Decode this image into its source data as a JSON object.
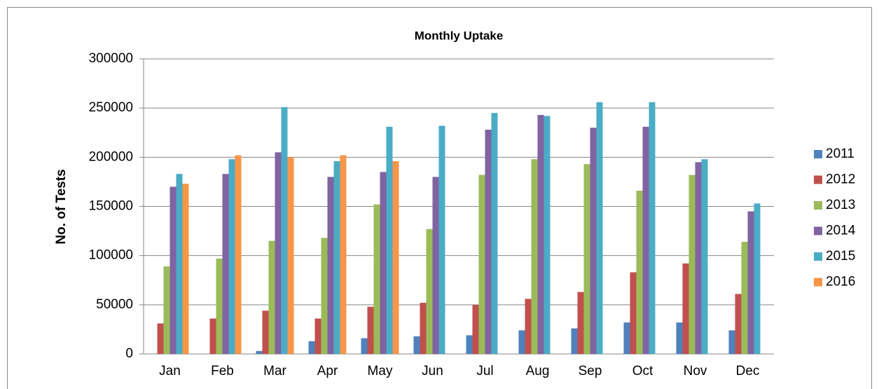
{
  "chart_data": {
    "type": "bar",
    "title": "Monthly Uptake",
    "y_label": "No. of Tests",
    "categories": [
      "Jan",
      "Feb",
      "Mar",
      "Apr",
      "May",
      "Jun",
      "Jul",
      "Aug",
      "Sep",
      "Oct",
      "Nov",
      "Dec"
    ],
    "series": [
      {
        "name": "2011",
        "color": "#4f81bd",
        "values": [
          null,
          null,
          3000,
          13000,
          16000,
          18000,
          19000,
          24000,
          26000,
          32000,
          32000,
          24000
        ]
      },
      {
        "name": "2012",
        "color": "#c0504d",
        "values": [
          31000,
          36000,
          44000,
          36000,
          48000,
          52000,
          50000,
          56000,
          63000,
          83000,
          92000,
          61000
        ]
      },
      {
        "name": "2013",
        "color": "#9bbb59",
        "values": [
          89000,
          97000,
          115000,
          118000,
          152000,
          127000,
          182000,
          198000,
          193000,
          166000,
          182000,
          114000
        ]
      },
      {
        "name": "2014",
        "color": "#8064a2",
        "values": [
          170000,
          183000,
          205000,
          180000,
          185000,
          180000,
          228000,
          243000,
          230000,
          231000,
          195000,
          145000
        ]
      },
      {
        "name": "2015",
        "color": "#4bacc6",
        "values": [
          183000,
          198000,
          251000,
          196000,
          231000,
          232000,
          245000,
          242000,
          256000,
          256000,
          198000,
          153000
        ]
      },
      {
        "name": "2016",
        "color": "#f79646",
        "values": [
          173000,
          202000,
          200000,
          202000,
          196000,
          null,
          null,
          null,
          null,
          null,
          null,
          null
        ]
      }
    ],
    "ylim": [
      0,
      300000
    ],
    "yticks": [
      0,
      50000,
      100000,
      150000,
      200000,
      250000,
      300000
    ],
    "grid": true,
    "legend_position": "right"
  }
}
